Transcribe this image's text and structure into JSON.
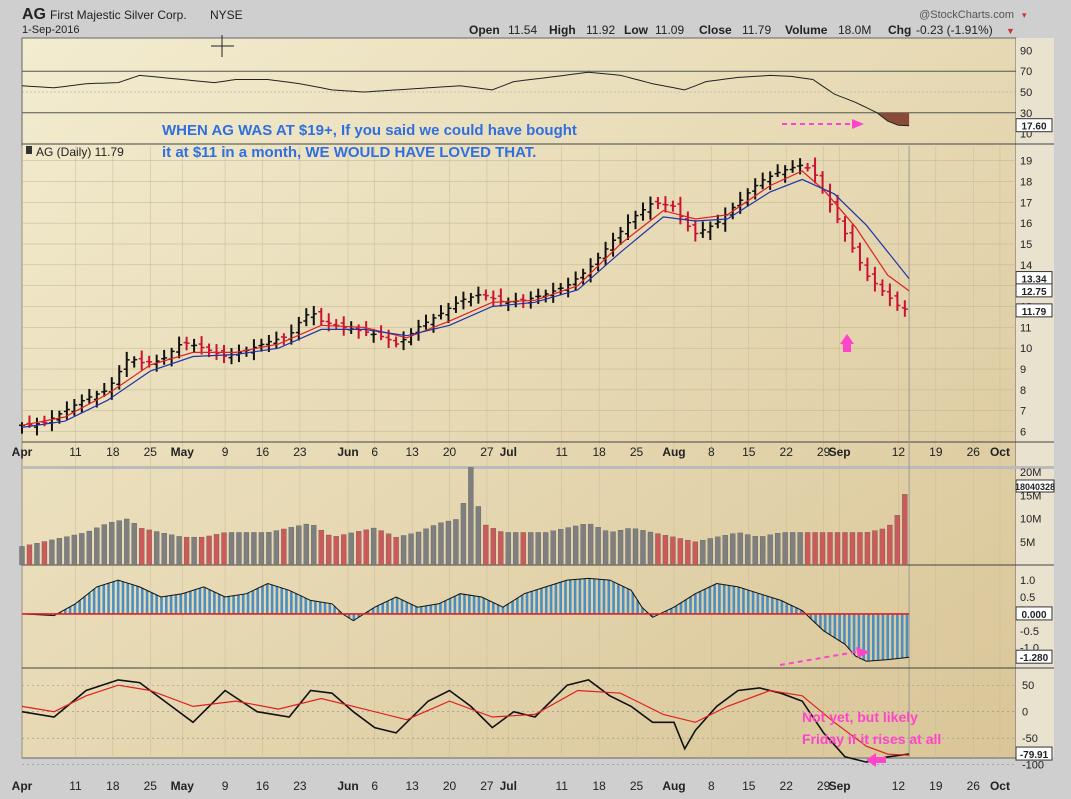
{
  "header": {
    "symbol": "AG",
    "company": "First Majestic Silver Corp.",
    "exchange": "NYSE",
    "date": "1-Sep-2016",
    "watermark": "@StockCharts.com",
    "open_label": "Open",
    "open": "11.54",
    "high_label": "High",
    "high": "11.92",
    "low_label": "Low",
    "low": "11.09",
    "close_label": "Close",
    "close": "11.79",
    "volume_label": "Volume",
    "volume": "18.0M",
    "chg_label": "Chg",
    "chg": "-0.23 (-1.91%)"
  },
  "colors": {
    "panel_bg": "#e9ddb2",
    "up_bar": "#111111",
    "down_bar": "#cc1133",
    "vol_up": "#7f7f7f",
    "vol_down": "#cc5a5a",
    "sma_fast": "#dd2222",
    "sma_slow": "#2233aa",
    "macd_hist": "#4a8fbf",
    "annotation_blue": "#2f6fe0",
    "annotation_magenta": "#ff33cc"
  },
  "price_legend": "AG (Daily) 11.79",
  "annotations": {
    "top_line1": "WHEN AG WAS AT $19+, If you said we could have bought",
    "top_line2": "it at $11 in a month,  WE WOULD HAVE LOVED THAT.",
    "bottom_line1": "Not yet, but likely",
    "bottom_line2": "Friday if it rises at all"
  },
  "chart_data": [
    {
      "type": "line",
      "panel": "rsi",
      "yticks": [
        "90",
        "70",
        "50",
        "30",
        "10"
      ],
      "ylim": [
        0,
        100
      ],
      "last_value": "17.60",
      "points": [
        [
          0,
          56
        ],
        [
          6,
          54
        ],
        [
          12,
          58
        ],
        [
          18,
          59
        ],
        [
          22,
          66
        ],
        [
          30,
          62
        ],
        [
          36,
          59
        ],
        [
          40,
          62
        ],
        [
          46,
          62
        ],
        [
          52,
          58
        ],
        [
          58,
          52
        ],
        [
          64,
          50
        ],
        [
          70,
          52
        ],
        [
          76,
          54
        ],
        [
          82,
          56
        ],
        [
          88,
          52
        ],
        [
          92,
          60
        ],
        [
          100,
          65
        ],
        [
          106,
          69
        ],
        [
          112,
          66
        ],
        [
          118,
          58
        ],
        [
          124,
          52
        ],
        [
          128,
          60
        ],
        [
          134,
          64
        ],
        [
          140,
          66
        ],
        [
          144,
          65
        ],
        [
          148,
          62
        ],
        [
          152,
          48
        ],
        [
          156,
          40
        ],
        [
          160,
          30
        ],
        [
          162,
          22
        ],
        [
          164,
          18
        ],
        [
          166,
          17.6
        ]
      ]
    },
    {
      "type": "bar",
      "panel": "price",
      "title": "AG (Daily) 11.79",
      "yticks": [
        "19",
        "18",
        "17",
        "16",
        "15",
        "14",
        "13",
        "12",
        "11",
        "10",
        "9",
        "8",
        "7",
        "6"
      ],
      "ylim": [
        5.5,
        19.7
      ],
      "last_labels": [
        "13.34",
        "12.75",
        "11.79"
      ],
      "x_ticks": [
        "Apr",
        "11",
        "18",
        "25",
        "May",
        "9",
        "16",
        "23",
        "Jun",
        "6",
        "13",
        "20",
        "27",
        "Jul",
        "11",
        "18",
        "25",
        "Aug",
        "8",
        "15",
        "22",
        "29",
        "Sep",
        "12",
        "19",
        "26",
        "Oct"
      ],
      "close_series": [
        [
          0,
          6.3
        ],
        [
          4,
          6.4
        ],
        [
          8,
          7.0
        ],
        [
          12,
          7.6
        ],
        [
          16,
          8.0
        ],
        [
          18,
          8.8
        ],
        [
          20,
          9.6
        ],
        [
          22,
          9.3
        ],
        [
          26,
          9.4
        ],
        [
          30,
          10.3
        ],
        [
          34,
          10.0
        ],
        [
          38,
          9.6
        ],
        [
          42,
          9.9
        ],
        [
          46,
          10.3
        ],
        [
          50,
          10.6
        ],
        [
          52,
          11.3
        ],
        [
          54,
          11.8
        ],
        [
          56,
          11.3
        ],
        [
          60,
          11.0
        ],
        [
          64,
          10.8
        ],
        [
          68,
          10.5
        ],
        [
          70,
          10.2
        ],
        [
          72,
          10.5
        ],
        [
          74,
          11.0
        ],
        [
          78,
          11.6
        ],
        [
          82,
          12.3
        ],
        [
          86,
          12.6
        ],
        [
          90,
          12.2
        ],
        [
          94,
          12.3
        ],
        [
          98,
          12.6
        ],
        [
          102,
          13.0
        ],
        [
          106,
          13.8
        ],
        [
          110,
          15.0
        ],
        [
          114,
          16.2
        ],
        [
          118,
          17.0
        ],
        [
          122,
          16.8
        ],
        [
          124,
          16.0
        ],
        [
          126,
          15.5
        ],
        [
          130,
          16.0
        ],
        [
          134,
          17.0
        ],
        [
          138,
          18.0
        ],
        [
          142,
          18.5
        ],
        [
          146,
          18.8
        ],
        [
          148,
          18.5
        ],
        [
          150,
          17.5
        ],
        [
          152,
          16.5
        ],
        [
          154,
          15.5
        ],
        [
          156,
          14.5
        ],
        [
          158,
          13.5
        ],
        [
          160,
          13.0
        ],
        [
          162,
          12.5
        ],
        [
          164,
          12.0
        ],
        [
          166,
          11.79
        ]
      ],
      "series": [
        {
          "name": "SMA fast",
          "values": [
            [
              0,
              6.3
            ],
            [
              8,
              6.7
            ],
            [
              16,
              7.8
            ],
            [
              24,
              9.2
            ],
            [
              32,
              9.8
            ],
            [
              40,
              9.8
            ],
            [
              48,
              10.2
            ],
            [
              56,
              11.1
            ],
            [
              64,
              11.0
            ],
            [
              72,
              10.5
            ],
            [
              80,
              11.3
            ],
            [
              88,
              12.2
            ],
            [
              96,
              12.3
            ],
            [
              104,
              13.0
            ],
            [
              112,
              15.0
            ],
            [
              120,
              16.6
            ],
            [
              126,
              16.2
            ],
            [
              132,
              16.4
            ],
            [
              140,
              17.8
            ],
            [
              146,
              18.5
            ],
            [
              150,
              17.6
            ],
            [
              156,
              15.8
            ],
            [
              162,
              13.5
            ],
            [
              166,
              12.75
            ]
          ]
        },
        {
          "name": "SMA slow",
          "values": [
            [
              0,
              6.2
            ],
            [
              8,
              6.5
            ],
            [
              16,
              7.5
            ],
            [
              24,
              8.9
            ],
            [
              32,
              9.6
            ],
            [
              40,
              9.7
            ],
            [
              48,
              10.0
            ],
            [
              56,
              10.9
            ],
            [
              64,
              10.9
            ],
            [
              72,
              10.6
            ],
            [
              80,
              11.1
            ],
            [
              88,
              12.0
            ],
            [
              96,
              12.2
            ],
            [
              104,
              12.8
            ],
            [
              112,
              14.6
            ],
            [
              120,
              16.3
            ],
            [
              126,
              16.1
            ],
            [
              132,
              16.2
            ],
            [
              140,
              17.5
            ],
            [
              146,
              18.1
            ],
            [
              152,
              17.4
            ],
            [
              158,
              15.9
            ],
            [
              166,
              13.34
            ]
          ]
        }
      ]
    },
    {
      "type": "bar",
      "panel": "volume",
      "yticks": [
        "20M",
        "15M",
        "10M",
        "5M"
      ],
      "ylim": [
        0,
        20
      ],
      "last_value": "18040328",
      "values": [
        [
          0,
          4
        ],
        [
          4,
          5
        ],
        [
          8,
          6
        ],
        [
          12,
          7
        ],
        [
          16,
          9
        ],
        [
          20,
          10
        ],
        [
          22,
          8
        ],
        [
          26,
          7
        ],
        [
          30,
          6
        ],
        [
          34,
          6
        ],
        [
          38,
          7
        ],
        [
          42,
          7
        ],
        [
          46,
          7
        ],
        [
          50,
          8
        ],
        [
          54,
          9
        ],
        [
          58,
          6
        ],
        [
          62,
          7
        ],
        [
          66,
          8
        ],
        [
          70,
          6
        ],
        [
          74,
          7
        ],
        [
          78,
          9
        ],
        [
          82,
          10
        ],
        [
          84,
          21
        ],
        [
          86,
          9
        ],
        [
          90,
          7
        ],
        [
          94,
          7
        ],
        [
          98,
          7
        ],
        [
          102,
          8
        ],
        [
          106,
          9
        ],
        [
          110,
          7
        ],
        [
          114,
          8
        ],
        [
          118,
          7
        ],
        [
          122,
          6
        ],
        [
          126,
          5
        ],
        [
          130,
          6
        ],
        [
          134,
          7
        ],
        [
          138,
          6
        ],
        [
          142,
          7
        ],
        [
          146,
          7
        ],
        [
          150,
          7
        ],
        [
          154,
          7
        ],
        [
          158,
          7
        ],
        [
          162,
          8
        ],
        [
          164,
          11
        ],
        [
          166,
          18
        ]
      ]
    },
    {
      "type": "area",
      "panel": "macd_histogram",
      "yticks": [
        "1.0",
        "0.5",
        "-0.5",
        "-1.0"
      ],
      "ylim": [
        -1.6,
        1.3
      ],
      "zero_label": "0.000",
      "last_value": "-1.280",
      "values": [
        [
          0,
          0
        ],
        [
          6,
          -0.05
        ],
        [
          10,
          0.3
        ],
        [
          14,
          0.8
        ],
        [
          18,
          1.0
        ],
        [
          22,
          0.8
        ],
        [
          26,
          0.5
        ],
        [
          30,
          0.6
        ],
        [
          34,
          0.8
        ],
        [
          38,
          0.5
        ],
        [
          42,
          0.6
        ],
        [
          46,
          0.9
        ],
        [
          50,
          0.7
        ],
        [
          54,
          0.4
        ],
        [
          58,
          0.3
        ],
        [
          60,
          0.0
        ],
        [
          62,
          -0.2
        ],
        [
          66,
          0.2
        ],
        [
          70,
          0.5
        ],
        [
          74,
          0.2
        ],
        [
          78,
          0.3
        ],
        [
          82,
          0.6
        ],
        [
          86,
          0.5
        ],
        [
          90,
          0.2
        ],
        [
          94,
          0.6
        ],
        [
          98,
          0.8
        ],
        [
          102,
          1.0
        ],
        [
          106,
          1.05
        ],
        [
          110,
          1.0
        ],
        [
          114,
          0.7
        ],
        [
          116,
          0.2
        ],
        [
          118,
          -0.1
        ],
        [
          122,
          0.2
        ],
        [
          126,
          0.6
        ],
        [
          130,
          0.9
        ],
        [
          134,
          0.8
        ],
        [
          138,
          0.6
        ],
        [
          142,
          0.4
        ],
        [
          146,
          0.1
        ],
        [
          150,
          -0.5
        ],
        [
          154,
          -0.9
        ],
        [
          156,
          -1.25
        ],
        [
          158,
          -1.4
        ],
        [
          162,
          -1.35
        ],
        [
          166,
          -1.28
        ]
      ]
    },
    {
      "type": "line",
      "panel": "oscillator",
      "yticks": [
        "50",
        "0",
        "-50",
        "-100"
      ],
      "ylim": [
        -110,
        75
      ],
      "last_value": "-79.91",
      "series": [
        {
          "name": "oscillator",
          "values": [
            [
              0,
              0
            ],
            [
              6,
              -10
            ],
            [
              12,
              40
            ],
            [
              18,
              60
            ],
            [
              22,
              55
            ],
            [
              28,
              10
            ],
            [
              32,
              -20
            ],
            [
              38,
              40
            ],
            [
              44,
              0
            ],
            [
              50,
              -10
            ],
            [
              54,
              40
            ],
            [
              58,
              35
            ],
            [
              62,
              0
            ],
            [
              66,
              -30
            ],
            [
              70,
              -40
            ],
            [
              76,
              20
            ],
            [
              80,
              40
            ],
            [
              84,
              10
            ],
            [
              88,
              -30
            ],
            [
              92,
              0
            ],
            [
              96,
              -10
            ],
            [
              102,
              50
            ],
            [
              106,
              60
            ],
            [
              110,
              30
            ],
            [
              114,
              10
            ],
            [
              118,
              -20
            ],
            [
              122,
              -20
            ],
            [
              124,
              -70
            ],
            [
              126,
              -35
            ],
            [
              130,
              10
            ],
            [
              134,
              40
            ],
            [
              138,
              45
            ],
            [
              142,
              35
            ],
            [
              146,
              20
            ],
            [
              150,
              -40
            ],
            [
              154,
              -85
            ],
            [
              158,
              -95
            ],
            [
              162,
              -85
            ],
            [
              166,
              -79.91
            ]
          ]
        },
        {
          "name": "signal",
          "values": [
            [
              0,
              10
            ],
            [
              6,
              0
            ],
            [
              12,
              30
            ],
            [
              18,
              50
            ],
            [
              24,
              40
            ],
            [
              32,
              10
            ],
            [
              40,
              20
            ],
            [
              48,
              5
            ],
            [
              56,
              25
            ],
            [
              64,
              5
            ],
            [
              72,
              -15
            ],
            [
              80,
              20
            ],
            [
              88,
              -10
            ],
            [
              96,
              -5
            ],
            [
              104,
              40
            ],
            [
              112,
              35
            ],
            [
              120,
              -5
            ],
            [
              126,
              -20
            ],
            [
              132,
              10
            ],
            [
              140,
              40
            ],
            [
              146,
              30
            ],
            [
              152,
              -20
            ],
            [
              158,
              -65
            ],
            [
              162,
              -80
            ],
            [
              166,
              -82
            ]
          ]
        }
      ]
    }
  ]
}
